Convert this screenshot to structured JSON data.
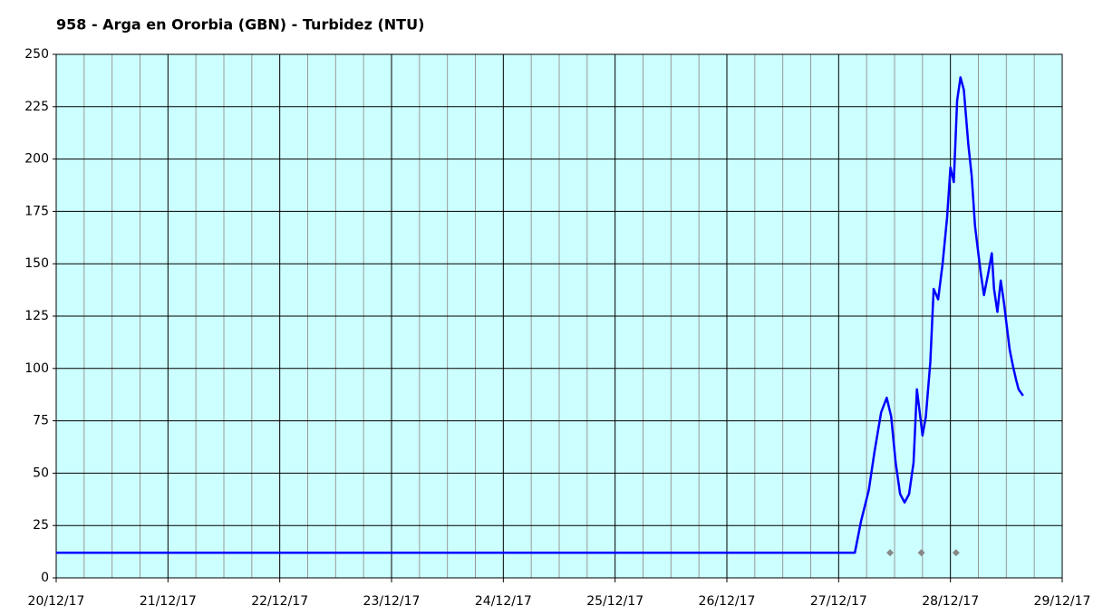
{
  "chart_data": {
    "type": "line",
    "title": "958 - Arga en Ororbia (GBN) - Turbidez (NTU)",
    "xlim": [
      0,
      9
    ],
    "xticks": [
      {
        "value": 0,
        "label": "20/12/17"
      },
      {
        "value": 1,
        "label": "21/12/17"
      },
      {
        "value": 2,
        "label": "22/12/17"
      },
      {
        "value": 3,
        "label": "23/12/17"
      },
      {
        "value": 4,
        "label": "24/12/17"
      },
      {
        "value": 5,
        "label": "25/12/17"
      },
      {
        "value": 6,
        "label": "26/12/17"
      },
      {
        "value": 7,
        "label": "27/12/17"
      },
      {
        "value": 8,
        "label": "28/12/17"
      },
      {
        "value": 9,
        "label": "29/12/17"
      }
    ],
    "ylim": [
      0,
      250
    ],
    "yticks": [
      0,
      25,
      50,
      75,
      100,
      125,
      150,
      175,
      200,
      225,
      250
    ],
    "grid": true,
    "background": "#ccffff",
    "series": [
      {
        "color": "#0000ff",
        "x": [
          0,
          7.145,
          7.2,
          7.27,
          7.32,
          7.38,
          7.43,
          7.47,
          7.51,
          7.55,
          7.59,
          7.63,
          7.67,
          7.7,
          7.73,
          7.75,
          7.78,
          7.82,
          7.85,
          7.89,
          7.93,
          7.97,
          8.0,
          8.03,
          8.06,
          8.09,
          8.12,
          8.16,
          8.19,
          8.22,
          8.27,
          8.3,
          8.34,
          8.37,
          8.39,
          8.42,
          8.45,
          8.48,
          8.5,
          8.53,
          8.56,
          8.59,
          8.61,
          8.65
        ],
        "values": [
          12,
          12,
          27,
          42,
          60,
          79,
          86,
          77,
          55,
          40,
          36,
          40,
          55,
          90,
          77,
          68,
          77,
          103,
          138,
          133,
          150,
          172,
          196,
          189,
          228,
          239,
          233,
          207,
          192,
          168,
          146,
          135,
          146,
          155,
          138,
          127,
          142,
          131,
          122,
          109,
          101,
          94,
          90,
          87
        ]
      },
      {
        "color": "#888888",
        "marker": "diamond",
        "x": [
          7.46,
          7.74,
          8.05
        ],
        "values": [
          12,
          12,
          12
        ]
      }
    ]
  }
}
